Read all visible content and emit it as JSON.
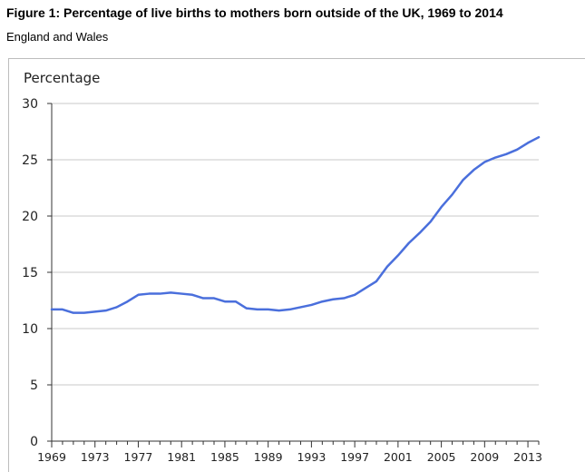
{
  "title": "Figure 1: Percentage of live births to mothers born outside of the UK, 1969 to 2014",
  "subtitle": "England and Wales",
  "chart_data": {
    "type": "line",
    "ylabel": "Percentage",
    "xlabel": "",
    "ylim": [
      0,
      30
    ],
    "yticks": [
      0,
      5,
      10,
      15,
      20,
      25,
      30
    ],
    "xlim": [
      1969,
      2014
    ],
    "xticks": [
      1969,
      1973,
      1977,
      1981,
      1985,
      1989,
      1993,
      1997,
      2001,
      2005,
      2009,
      2013
    ],
    "grid": true,
    "line_color": "#4a6fdc",
    "x": [
      1969,
      1970,
      1971,
      1972,
      1973,
      1974,
      1975,
      1976,
      1977,
      1978,
      1979,
      1980,
      1981,
      1982,
      1983,
      1984,
      1985,
      1986,
      1987,
      1988,
      1989,
      1990,
      1991,
      1992,
      1993,
      1994,
      1995,
      1996,
      1997,
      1998,
      1999,
      2000,
      2001,
      2002,
      2003,
      2004,
      2005,
      2006,
      2007,
      2008,
      2009,
      2010,
      2011,
      2012,
      2013,
      2014
    ],
    "series": [
      {
        "values": [
          11.7,
          11.7,
          11.4,
          11.4,
          11.5,
          11.6,
          11.9,
          12.4,
          13.0,
          13.1,
          13.1,
          13.2,
          13.1,
          13.0,
          12.7,
          12.7,
          12.4,
          12.4,
          11.8,
          11.7,
          11.7,
          11.6,
          11.7,
          11.9,
          12.1,
          12.4,
          12.6,
          12.7,
          13.0,
          13.6,
          14.2,
          15.5,
          16.5,
          17.6,
          18.5,
          19.5,
          20.8,
          21.9,
          23.2,
          24.1,
          24.8,
          25.2,
          25.5,
          25.9,
          26.5,
          27.0
        ]
      }
    ]
  }
}
